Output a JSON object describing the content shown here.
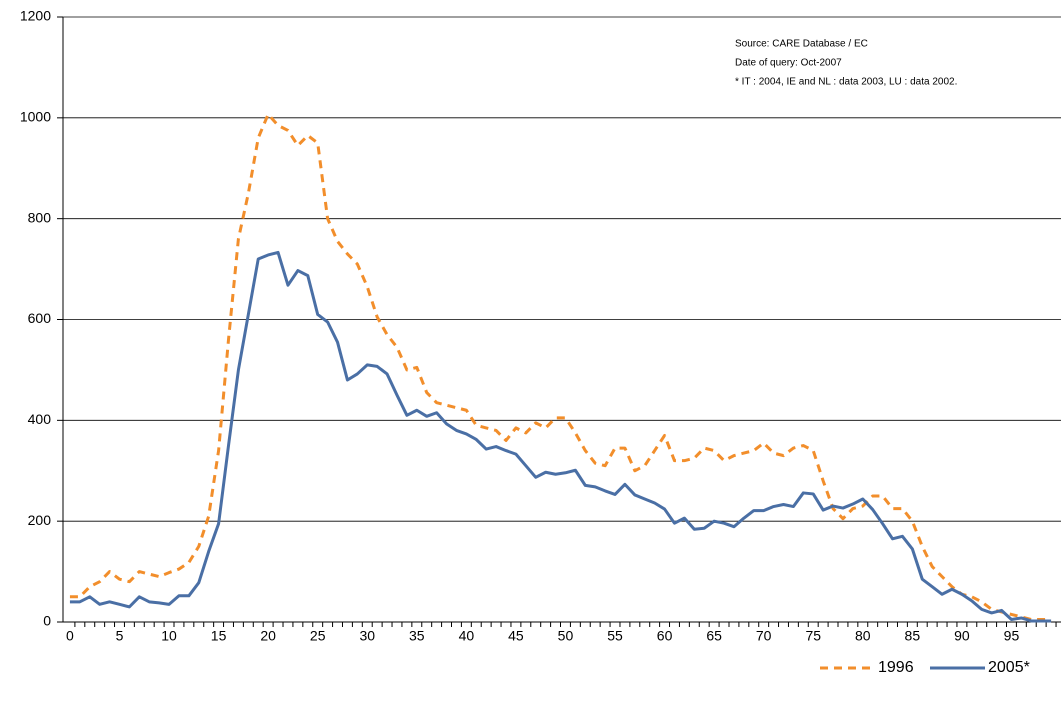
{
  "chart_data": {
    "type": "line",
    "annotations": [
      "Source: CARE Database / EC",
      "Date of query: Oct-2007",
      "* IT : 2004, IE and NL : data 2003, LU : data 2002."
    ],
    "x": [
      0,
      1,
      2,
      3,
      4,
      5,
      6,
      7,
      8,
      9,
      10,
      11,
      12,
      13,
      14,
      15,
      16,
      17,
      18,
      19,
      20,
      21,
      22,
      23,
      24,
      25,
      26,
      27,
      28,
      29,
      30,
      31,
      32,
      33,
      34,
      35,
      36,
      37,
      38,
      39,
      40,
      41,
      42,
      43,
      44,
      45,
      46,
      47,
      48,
      49,
      50,
      51,
      52,
      53,
      54,
      55,
      56,
      57,
      58,
      59,
      60,
      61,
      62,
      63,
      64,
      65,
      66,
      67,
      68,
      69,
      70,
      71,
      72,
      73,
      74,
      75,
      76,
      77,
      78,
      79,
      80,
      81,
      82,
      83,
      84,
      85,
      86,
      87,
      88,
      89,
      90,
      91,
      92,
      93,
      94,
      95,
      96,
      97,
      98,
      99
    ],
    "series": [
      {
        "name": "1996",
        "color": "#f28e2b",
        "dashed": true,
        "values": [
          50,
          50,
          70,
          80,
          100,
          85,
          80,
          100,
          95,
          90,
          98,
          105,
          118,
          150,
          210,
          340,
          560,
          760,
          850,
          960,
          1007,
          985,
          975,
          945,
          965,
          950,
          800,
          755,
          730,
          710,
          665,
          605,
          570,
          545,
          500,
          505,
          455,
          435,
          430,
          425,
          420,
          390,
          385,
          380,
          360,
          385,
          375,
          395,
          385,
          405,
          405,
          375,
          340,
          315,
          310,
          345,
          345,
          300,
          310,
          340,
          370,
          320,
          320,
          325,
          345,
          340,
          320,
          330,
          335,
          340,
          355,
          335,
          330,
          345,
          350,
          340,
          280,
          225,
          205,
          225,
          230,
          250,
          250,
          225,
          225,
          200,
          150,
          110,
          90,
          70,
          55,
          50,
          40,
          25,
          20,
          15,
          10,
          5,
          5,
          5
        ]
      },
      {
        "name": "2005*",
        "color": "#4a6fa5",
        "dashed": false,
        "values": [
          40,
          40,
          50,
          35,
          40,
          35,
          30,
          50,
          40,
          38,
          35,
          52,
          52,
          78,
          140,
          195,
          350,
          500,
          610,
          720,
          728,
          733,
          668,
          697,
          687,
          610,
          595,
          555,
          480,
          492,
          510,
          507,
          492,
          450,
          410,
          420,
          408,
          415,
          393,
          380,
          373,
          362,
          343,
          348,
          340,
          333,
          310,
          287,
          297,
          293,
          296,
          301,
          271,
          268,
          260,
          253,
          273,
          252,
          244,
          236,
          224,
          196,
          206,
          184,
          186,
          200,
          196,
          189,
          206,
          221,
          221,
          229,
          233,
          229,
          256,
          254,
          222,
          230,
          226,
          234,
          244,
          223,
          195,
          165,
          170,
          145,
          85,
          70,
          55,
          65,
          55,
          42,
          25,
          18,
          23,
          5,
          8,
          2,
          2,
          2
        ]
      }
    ],
    "xlim": [
      -0.7,
      100
    ],
    "xticks": [
      0,
      5,
      10,
      15,
      20,
      25,
      30,
      35,
      40,
      45,
      50,
      55,
      60,
      65,
      70,
      75,
      80,
      85,
      90,
      95
    ],
    "ylim": [
      0,
      1200
    ],
    "yticks": [
      0,
      200,
      400,
      600,
      800,
      1000,
      1200
    ],
    "grid": true,
    "legend": "bottom-right"
  }
}
